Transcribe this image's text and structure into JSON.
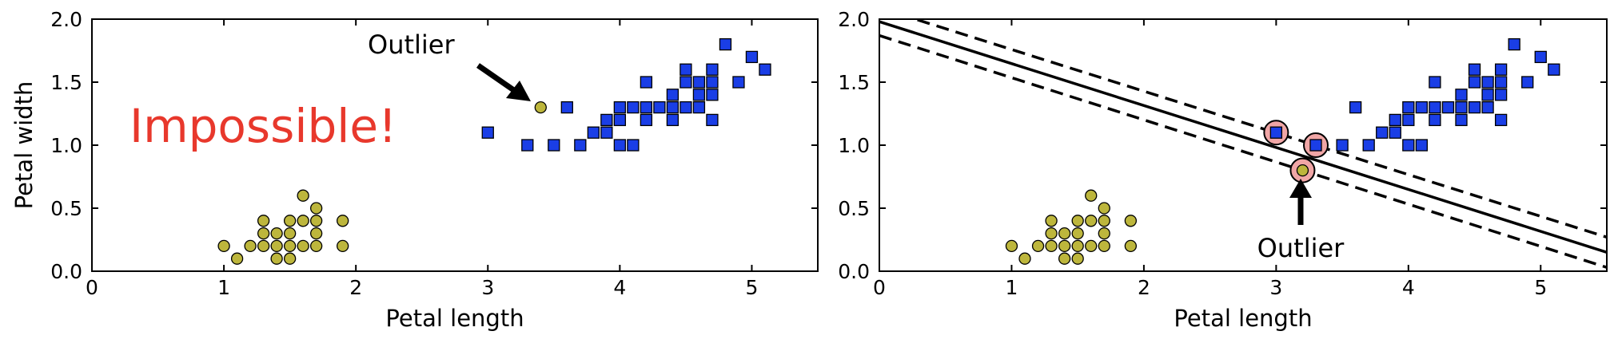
{
  "colors": {
    "class0_fill": "#bdb63c",
    "class1_fill": "#1a3ee6",
    "impossible_text": "#e8382c",
    "support_vector_fill": "#f0a6a6"
  },
  "chart_data": [
    {
      "type": "scatter",
      "xlabel": "Petal length",
      "ylabel": "Petal width",
      "xlim": [
        0,
        5.5
      ],
      "ylim": [
        0,
        2.0
      ],
      "xticks": [
        "0",
        "1",
        "2",
        "3",
        "4",
        "5"
      ],
      "yticks": [
        "0.0",
        "0.5",
        "1.0",
        "1.5",
        "2.0"
      ],
      "grid": false,
      "series": [
        {
          "marker": "circle",
          "points": [
            [
              1.0,
              0.2
            ],
            [
              1.1,
              0.1
            ],
            [
              1.2,
              0.2
            ],
            [
              1.3,
              0.2
            ],
            [
              1.3,
              0.3
            ],
            [
              1.3,
              0.4
            ],
            [
              1.4,
              0.1
            ],
            [
              1.4,
              0.2
            ],
            [
              1.4,
              0.3
            ],
            [
              1.5,
              0.1
            ],
            [
              1.5,
              0.2
            ],
            [
              1.5,
              0.3
            ],
            [
              1.5,
              0.4
            ],
            [
              1.6,
              0.2
            ],
            [
              1.6,
              0.4
            ],
            [
              1.6,
              0.6
            ],
            [
              1.7,
              0.2
            ],
            [
              1.7,
              0.3
            ],
            [
              1.7,
              0.4
            ],
            [
              1.7,
              0.5
            ],
            [
              1.9,
              0.2
            ],
            [
              1.9,
              0.4
            ],
            [
              3.4,
              1.3
            ]
          ]
        },
        {
          "marker": "square",
          "points": [
            [
              3.0,
              1.1
            ],
            [
              3.3,
              1.0
            ],
            [
              3.5,
              1.0
            ],
            [
              3.6,
              1.3
            ],
            [
              3.7,
              1.0
            ],
            [
              3.8,
              1.1
            ],
            [
              3.9,
              1.1
            ],
            [
              3.9,
              1.2
            ],
            [
              4.0,
              1.0
            ],
            [
              4.0,
              1.2
            ],
            [
              4.0,
              1.3
            ],
            [
              4.1,
              1.0
            ],
            [
              4.1,
              1.3
            ],
            [
              4.2,
              1.2
            ],
            [
              4.2,
              1.3
            ],
            [
              4.2,
              1.5
            ],
            [
              4.3,
              1.3
            ],
            [
              4.4,
              1.2
            ],
            [
              4.4,
              1.3
            ],
            [
              4.4,
              1.4
            ],
            [
              4.5,
              1.3
            ],
            [
              4.5,
              1.5
            ],
            [
              4.5,
              1.6
            ],
            [
              4.6,
              1.3
            ],
            [
              4.6,
              1.4
            ],
            [
              4.6,
              1.5
            ],
            [
              4.7,
              1.2
            ],
            [
              4.7,
              1.4
            ],
            [
              4.7,
              1.5
            ],
            [
              4.7,
              1.6
            ],
            [
              4.8,
              1.8
            ],
            [
              4.9,
              1.5
            ],
            [
              5.0,
              1.7
            ],
            [
              5.1,
              1.6
            ]
          ]
        }
      ],
      "annotations": [
        {
          "text": "Outlier",
          "arrow_to": [
            3.4,
            1.3
          ]
        },
        {
          "text": "Impossible!"
        }
      ]
    },
    {
      "type": "scatter",
      "xlabel": "Petal length",
      "ylabel": "",
      "xlim": [
        0,
        5.5
      ],
      "ylim": [
        0,
        2.0
      ],
      "xticks": [
        "0",
        "1",
        "2",
        "3",
        "4",
        "5"
      ],
      "yticks": [
        "0.0",
        "0.5",
        "1.0",
        "1.5",
        "2.0"
      ],
      "grid": false,
      "series": [
        {
          "marker": "circle",
          "points": [
            [
              1.0,
              0.2
            ],
            [
              1.1,
              0.1
            ],
            [
              1.2,
              0.2
            ],
            [
              1.3,
              0.2
            ],
            [
              1.3,
              0.3
            ],
            [
              1.3,
              0.4
            ],
            [
              1.4,
              0.1
            ],
            [
              1.4,
              0.2
            ],
            [
              1.4,
              0.3
            ],
            [
              1.5,
              0.1
            ],
            [
              1.5,
              0.2
            ],
            [
              1.5,
              0.3
            ],
            [
              1.5,
              0.4
            ],
            [
              1.6,
              0.2
            ],
            [
              1.6,
              0.4
            ],
            [
              1.6,
              0.6
            ],
            [
              1.7,
              0.2
            ],
            [
              1.7,
              0.3
            ],
            [
              1.7,
              0.4
            ],
            [
              1.7,
              0.5
            ],
            [
              1.9,
              0.2
            ],
            [
              1.9,
              0.4
            ],
            [
              3.2,
              0.8
            ]
          ]
        },
        {
          "marker": "square",
          "points": [
            [
              3.0,
              1.1
            ],
            [
              3.3,
              1.0
            ],
            [
              3.5,
              1.0
            ],
            [
              3.6,
              1.3
            ],
            [
              3.7,
              1.0
            ],
            [
              3.8,
              1.1
            ],
            [
              3.9,
              1.1
            ],
            [
              3.9,
              1.2
            ],
            [
              4.0,
              1.0
            ],
            [
              4.0,
              1.2
            ],
            [
              4.0,
              1.3
            ],
            [
              4.1,
              1.0
            ],
            [
              4.1,
              1.3
            ],
            [
              4.2,
              1.2
            ],
            [
              4.2,
              1.3
            ],
            [
              4.2,
              1.5
            ],
            [
              4.3,
              1.3
            ],
            [
              4.4,
              1.2
            ],
            [
              4.4,
              1.3
            ],
            [
              4.4,
              1.4
            ],
            [
              4.5,
              1.3
            ],
            [
              4.5,
              1.5
            ],
            [
              4.5,
              1.6
            ],
            [
              4.6,
              1.3
            ],
            [
              4.6,
              1.4
            ],
            [
              4.6,
              1.5
            ],
            [
              4.7,
              1.2
            ],
            [
              4.7,
              1.4
            ],
            [
              4.7,
              1.5
            ],
            [
              4.7,
              1.6
            ],
            [
              4.8,
              1.8
            ],
            [
              4.9,
              1.5
            ],
            [
              5.0,
              1.7
            ],
            [
              5.1,
              1.6
            ]
          ]
        }
      ],
      "decision_boundary": {
        "solid": [
          [
            0,
            1.98
          ],
          [
            5.5,
            0.15
          ]
        ],
        "dashed_upper": [
          [
            0,
            2.09
          ],
          [
            5.5,
            0.27
          ]
        ],
        "dashed_lower": [
          [
            0,
            1.87
          ],
          [
            5.5,
            0.03
          ]
        ]
      },
      "support_vectors": [
        [
          3.0,
          1.1
        ],
        [
          3.3,
          1.0
        ],
        [
          3.2,
          0.8
        ]
      ],
      "annotations": [
        {
          "text": "Outlier",
          "arrow_to": [
            3.2,
            0.8
          ]
        }
      ]
    }
  ]
}
